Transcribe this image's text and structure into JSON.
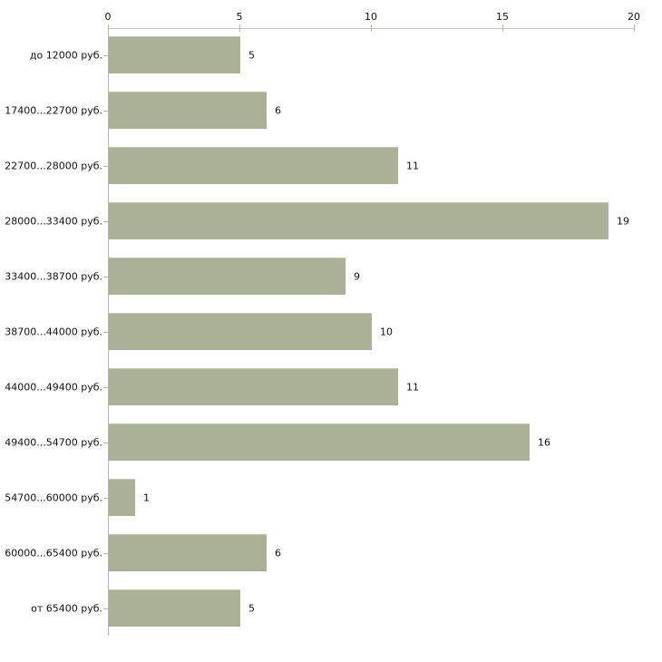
{
  "chart_data": {
    "type": "bar",
    "orientation": "horizontal",
    "title": "",
    "xlabel": "",
    "ylabel": "",
    "categories": [
      "до 12000 руб.",
      "17400...22700 руб.",
      "22700...28000 руб.",
      "28000...33400 руб.",
      "33400...38700 руб.",
      "38700...44000 руб.",
      "44000...49400 руб.",
      "49400...54700 руб.",
      "54700...60000 руб.",
      "60000...65400 руб.",
      "от 65400 руб."
    ],
    "values": [
      5,
      6,
      11,
      19,
      9,
      10,
      11,
      16,
      1,
      6,
      5
    ],
    "x_ticks": [
      "0",
      "5",
      "10",
      "15",
      "20"
    ],
    "x_tick_values": [
      0,
      5,
      10,
      15,
      20
    ],
    "xlim": [
      0,
      20
    ],
    "axis_position": "top",
    "grid": false,
    "legend": false,
    "value_labels_shown": true,
    "colors": {
      "bar_fill": "#abb196",
      "bar_top_highlight": "#c3c7ae",
      "axis_line_horizontal": "#c4c4c4",
      "axis_line_vertical": "#b3b3b3",
      "tick_mark": "#b9bd92",
      "text": "#111111",
      "background": "#ffffff"
    }
  }
}
